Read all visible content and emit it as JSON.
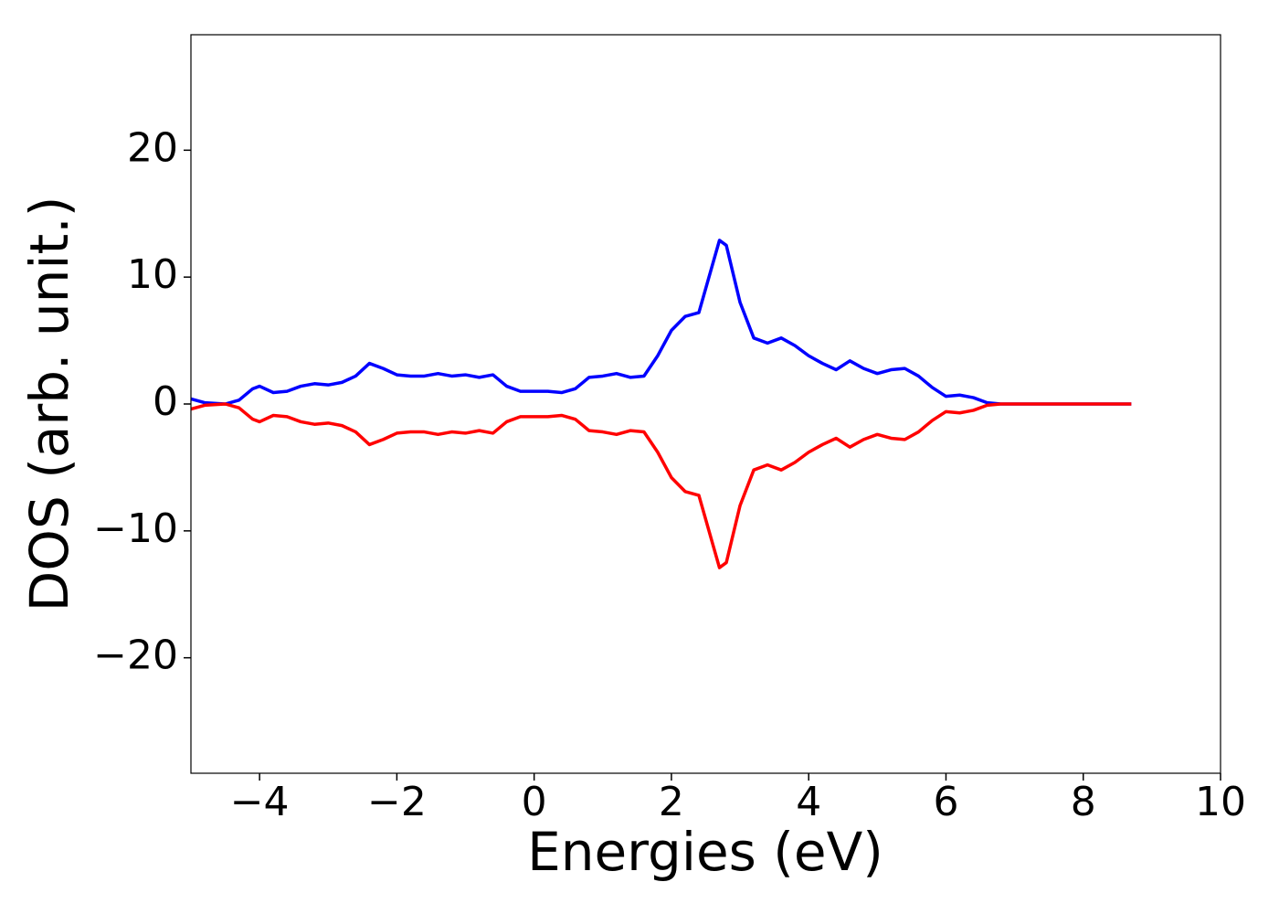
{
  "chart_data": {
    "type": "line",
    "xlabel": "Energies (eV)",
    "ylabel": "DOS (arb. unit.)",
    "x": [
      -5,
      -4.8,
      -4.5,
      -4.3,
      -4.1,
      -4.0,
      -3.8,
      -3.6,
      -3.4,
      -3.2,
      -3.0,
      -2.8,
      -2.6,
      -2.4,
      -2.2,
      -2.0,
      -1.8,
      -1.6,
      -1.4,
      -1.2,
      -1.0,
      -0.8,
      -0.6,
      -0.4,
      -0.2,
      0,
      0.2,
      0.4,
      0.6,
      0.8,
      1.0,
      1.2,
      1.4,
      1.6,
      1.8,
      2.0,
      2.2,
      2.4,
      2.6,
      2.7,
      2.8,
      3.0,
      3.2,
      3.4,
      3.6,
      3.8,
      4.0,
      4.2,
      4.4,
      4.6,
      4.8,
      5.0,
      5.2,
      5.4,
      5.6,
      5.8,
      6.0,
      6.2,
      6.4,
      6.6,
      6.8,
      7.0,
      8.0,
      8.7
    ],
    "series": [
      {
        "color": "#0000ff",
        "values": [
          0.4,
          0.1,
          0.0,
          0.3,
          1.2,
          1.4,
          0.9,
          1.0,
          1.4,
          1.6,
          1.5,
          1.7,
          2.2,
          3.2,
          2.8,
          2.3,
          2.2,
          2.2,
          2.4,
          2.2,
          2.3,
          2.1,
          2.3,
          1.4,
          1.0,
          1.0,
          1.0,
          0.9,
          1.2,
          2.1,
          2.2,
          2.4,
          2.1,
          2.2,
          3.8,
          5.8,
          6.9,
          7.2,
          11.0,
          12.9,
          12.5,
          8.0,
          5.2,
          4.8,
          5.2,
          4.6,
          3.8,
          3.2,
          2.7,
          3.4,
          2.8,
          2.4,
          2.7,
          2.8,
          2.2,
          1.3,
          0.6,
          0.7,
          0.5,
          0.1,
          0,
          0,
          0,
          0
        ]
      },
      {
        "color": "#ff0000",
        "values": [
          -0.4,
          -0.1,
          0.0,
          -0.3,
          -1.2,
          -1.4,
          -0.9,
          -1.0,
          -1.4,
          -1.6,
          -1.5,
          -1.7,
          -2.2,
          -3.2,
          -2.8,
          -2.3,
          -2.2,
          -2.2,
          -2.4,
          -2.2,
          -2.3,
          -2.1,
          -2.3,
          -1.4,
          -1.0,
          -1.0,
          -1.0,
          -0.9,
          -1.2,
          -2.1,
          -2.2,
          -2.4,
          -2.1,
          -2.2,
          -3.8,
          -5.8,
          -6.9,
          -7.2,
          -11.0,
          -12.9,
          -12.5,
          -8.0,
          -5.2,
          -4.8,
          -5.2,
          -4.6,
          -3.8,
          -3.2,
          -2.7,
          -3.4,
          -2.8,
          -2.4,
          -2.7,
          -2.8,
          -2.2,
          -1.3,
          -0.6,
          -0.7,
          -0.5,
          -0.1,
          0,
          0,
          0,
          0
        ]
      }
    ],
    "xlim": [
      -5,
      10
    ],
    "xticks": [
      {
        "value": -4,
        "label": "−4"
      },
      {
        "value": -2,
        "label": "−2"
      },
      0,
      2,
      4,
      6,
      8,
      10
    ],
    "ylim": [
      -29.1,
      29.1
    ],
    "yticks": [
      {
        "value": -20,
        "label": "−20"
      },
      {
        "value": -10,
        "label": "−10"
      },
      0,
      10,
      20
    ],
    "grid": false
  }
}
